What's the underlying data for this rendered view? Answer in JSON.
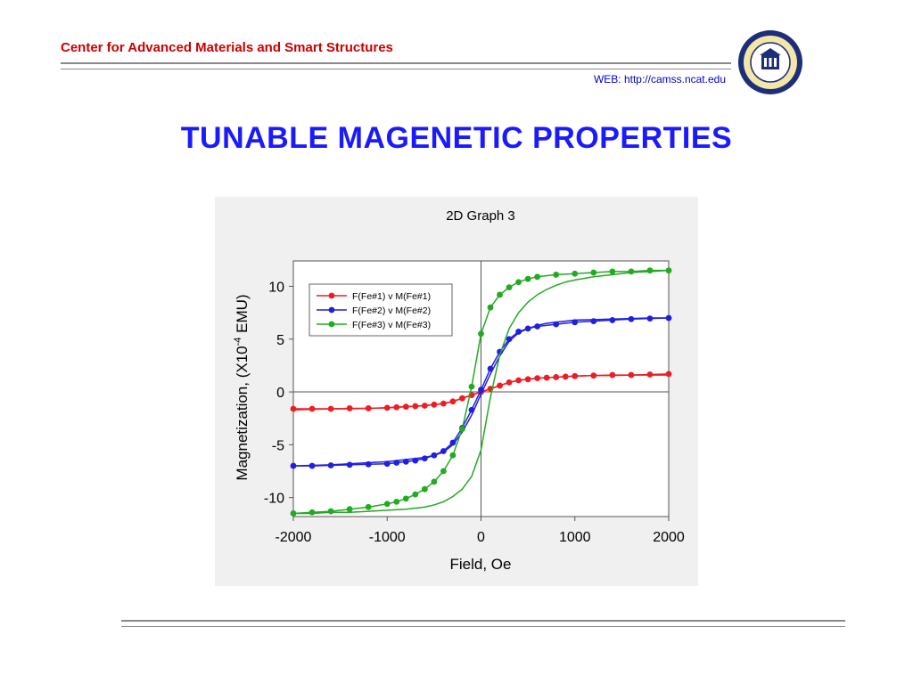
{
  "header": {
    "org_name": "Center for Advanced Materials and Smart Structures",
    "web": "WEB: http://camss.ncat.edu"
  },
  "slide": {
    "title": "TUNABLE MAGENETIC PROPERTIES"
  },
  "logo": {
    "icon": "university-seal-icon"
  },
  "chart_data": {
    "type": "line",
    "title": "2D Graph 3",
    "xlabel": "Field, Oe",
    "ylabel": "Magnetization, (X10",
    "ylabel_sup": "-4",
    "ylabel_tail": " EMU)",
    "xlim": [
      -2000,
      2000
    ],
    "ylim": [
      -11.8,
      12.4
    ],
    "xticks": [
      -2000,
      -1000,
      0,
      1000,
      2000
    ],
    "yticks": [
      -10,
      -5,
      0,
      5,
      10
    ],
    "legend_position": "top-left",
    "grid": false,
    "series": [
      {
        "name": "F(Fe#1) v M(Fe#1)",
        "color": "#ee1c25",
        "points": [
          [
            -2000,
            -1.6
          ],
          [
            -1800,
            -1.6
          ],
          [
            -1600,
            -1.6
          ],
          [
            -1400,
            -1.55
          ],
          [
            -1200,
            -1.55
          ],
          [
            -1000,
            -1.5
          ],
          [
            -900,
            -1.45
          ],
          [
            -800,
            -1.4
          ],
          [
            -700,
            -1.35
          ],
          [
            -600,
            -1.3
          ],
          [
            -500,
            -1.2
          ],
          [
            -400,
            -1.1
          ],
          [
            -300,
            -0.9
          ],
          [
            -200,
            -0.6
          ],
          [
            -100,
            -0.3
          ],
          [
            0,
            0
          ],
          [
            100,
            0.3
          ],
          [
            200,
            0.6
          ],
          [
            300,
            0.9
          ],
          [
            400,
            1.1
          ],
          [
            500,
            1.2
          ],
          [
            600,
            1.3
          ],
          [
            700,
            1.35
          ],
          [
            800,
            1.4
          ],
          [
            900,
            1.45
          ],
          [
            1000,
            1.5
          ],
          [
            1200,
            1.55
          ],
          [
            1400,
            1.6
          ],
          [
            1600,
            1.6
          ],
          [
            1800,
            1.65
          ],
          [
            2000,
            1.7
          ]
        ]
      },
      {
        "name": "F(Fe#2) v M(Fe#2)",
        "color": "#1f1fe0",
        "points": [
          [
            -2000,
            -7.0
          ],
          [
            -1800,
            -7.0
          ],
          [
            -1600,
            -6.95
          ],
          [
            -1400,
            -6.9
          ],
          [
            -1200,
            -6.85
          ],
          [
            -1000,
            -6.8
          ],
          [
            -900,
            -6.7
          ],
          [
            -800,
            -6.6
          ],
          [
            -700,
            -6.5
          ],
          [
            -600,
            -6.3
          ],
          [
            -500,
            -6.0
          ],
          [
            -400,
            -5.6
          ],
          [
            -300,
            -4.8
          ],
          [
            -200,
            -3.4
          ],
          [
            -100,
            -1.7
          ],
          [
            0,
            0.2
          ],
          [
            100,
            2.2
          ],
          [
            200,
            3.8
          ],
          [
            300,
            5.0
          ],
          [
            400,
            5.7
          ],
          [
            500,
            6.0
          ],
          [
            600,
            6.2
          ],
          [
            800,
            6.4
          ],
          [
            1000,
            6.6
          ],
          [
            1200,
            6.7
          ],
          [
            1400,
            6.8
          ],
          [
            1600,
            6.9
          ],
          [
            1800,
            6.95
          ],
          [
            2000,
            7.0
          ]
        ]
      },
      {
        "name": "F(Fe#3) v M(Fe#3)",
        "color": "#22aa22",
        "points": [
          [
            -2000,
            -11.5
          ],
          [
            -1800,
            -11.4
          ],
          [
            -1600,
            -11.3
          ],
          [
            -1400,
            -11.1
          ],
          [
            -1200,
            -10.9
          ],
          [
            -1000,
            -10.6
          ],
          [
            -900,
            -10.4
          ],
          [
            -800,
            -10.1
          ],
          [
            -700,
            -9.7
          ],
          [
            -600,
            -9.2
          ],
          [
            -500,
            -8.5
          ],
          [
            -400,
            -7.5
          ],
          [
            -300,
            -6.0
          ],
          [
            -200,
            -3.5
          ],
          [
            -100,
            0.5
          ],
          [
            0,
            5.5
          ],
          [
            100,
            8.0
          ],
          [
            200,
            9.2
          ],
          [
            300,
            9.9
          ],
          [
            400,
            10.4
          ],
          [
            500,
            10.7
          ],
          [
            600,
            10.9
          ],
          [
            800,
            11.1
          ],
          [
            1000,
            11.2
          ],
          [
            1200,
            11.3
          ],
          [
            1400,
            11.4
          ],
          [
            1600,
            11.4
          ],
          [
            1800,
            11.5
          ],
          [
            2000,
            11.5
          ]
        ]
      }
    ]
  }
}
